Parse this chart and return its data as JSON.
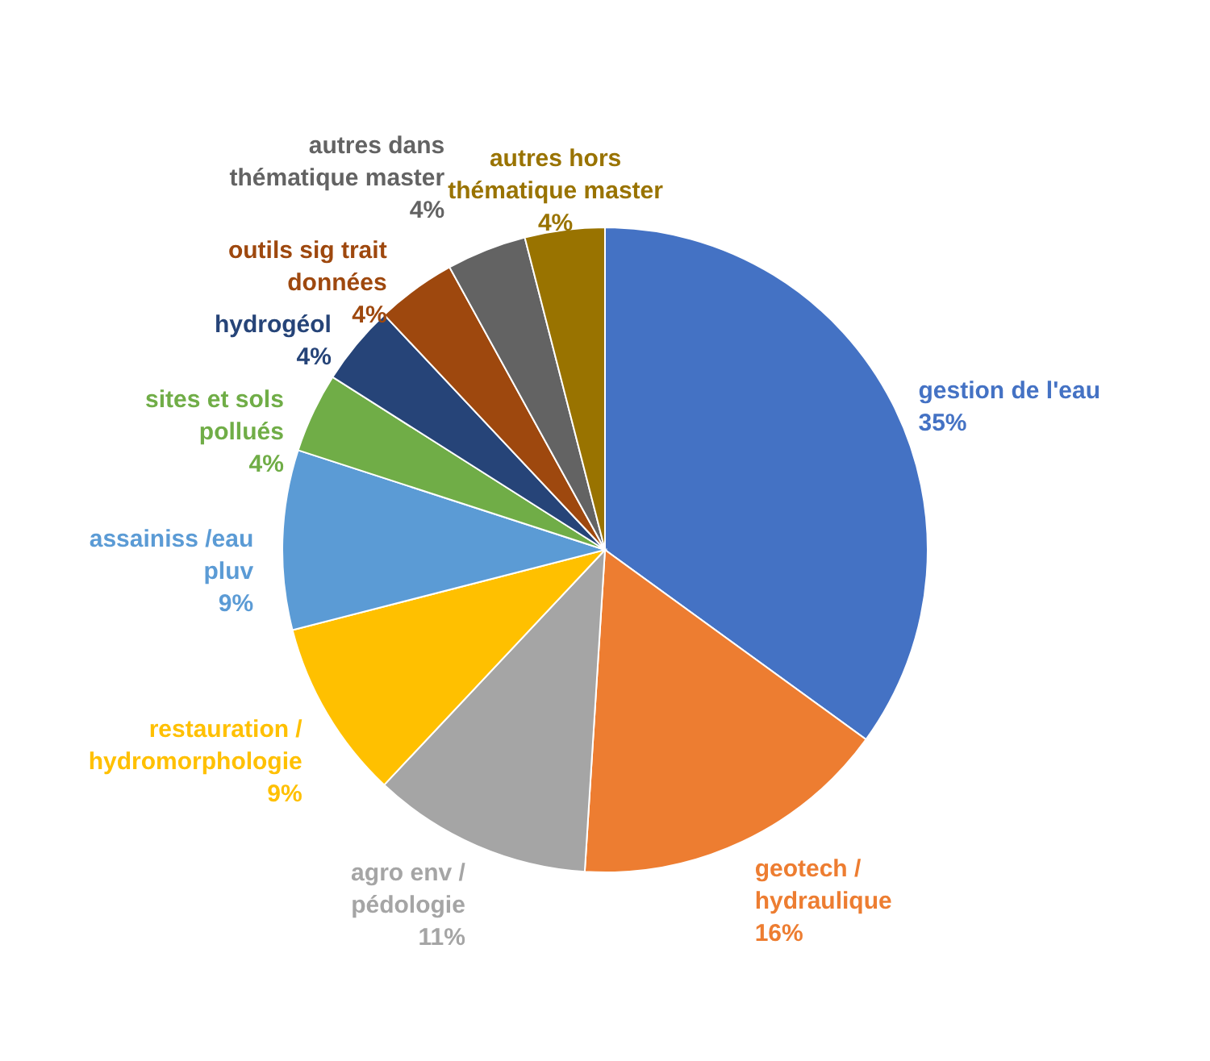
{
  "chart_data": {
    "type": "pie",
    "categories": [
      "gestion de l'eau",
      "geotech / hydraulique",
      "agro env / pédologie",
      "restauration / hydromorphologie",
      "assainiss /eau pluv",
      "sites et sols pollués",
      "hydrogéol",
      "outils sig trait données",
      "autres dans thématique master",
      "autres hors thématique master"
    ],
    "values": [
      35,
      16,
      11,
      9,
      9,
      4,
      4,
      4,
      4,
      4
    ],
    "value_labels": [
      "35%",
      "16%",
      "11%",
      "9%",
      "9%",
      "4%",
      "4%",
      "4%",
      "4%",
      "4%"
    ],
    "colors": [
      "#4472c4",
      "#ed7d31",
      "#a5a5a5",
      "#ffc000",
      "#5b9bd5",
      "#70ad47",
      "#264478",
      "#9e480e",
      "#636363",
      "#997300"
    ],
    "legend": false
  }
}
